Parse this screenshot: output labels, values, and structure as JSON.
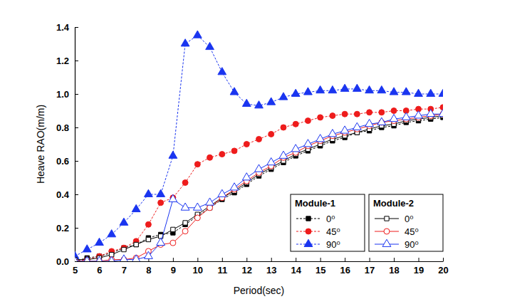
{
  "chart_data": {
    "type": "line",
    "x_label": "Period(sec)",
    "y_label": "Heave RAO(m/m)",
    "xlim": [
      5,
      20
    ],
    "xticks": [
      5,
      6,
      7,
      8,
      9,
      10,
      11,
      12,
      13,
      14,
      15,
      16,
      17,
      18,
      19,
      20
    ],
    "ylim": [
      0,
      1.4
    ],
    "yticks": [
      {
        "value": 0,
        "label": "0.0"
      },
      0.2,
      0.4,
      0.6,
      0.8,
      {
        "value": 1,
        "label": "1.0"
      },
      1.2,
      1.4
    ],
    "grid": false,
    "legend": "bottom-right",
    "x": [
      5,
      5.5,
      6,
      6.5,
      7,
      7.5,
      8,
      8.5,
      9,
      9.5,
      10,
      10.5,
      11,
      11.5,
      12,
      12.5,
      13,
      13.5,
      14,
      14.5,
      15,
      15.5,
      16,
      16.5,
      17,
      17.5,
      18,
      18.5,
      19,
      19.5,
      20
    ],
    "series": [
      {
        "name": "0⁰",
        "group": "Module-1",
        "color": "#000000",
        "marker": "filled-square",
        "line_style": "dashed",
        "values": [
          0.0,
          0.02,
          0.03,
          0.05,
          0.08,
          0.1,
          0.14,
          0.16,
          0.17,
          0.22,
          0.27,
          0.32,
          0.37,
          0.41,
          0.46,
          0.51,
          0.55,
          0.59,
          0.63,
          0.66,
          0.69,
          0.72,
          0.74,
          0.77,
          0.78,
          0.8,
          0.81,
          0.83,
          0.84,
          0.85,
          0.86
        ]
      },
      {
        "name": "45⁰",
        "group": "Module-1",
        "color": "#ee1c1c",
        "marker": "filled-circle",
        "line_style": "dashed",
        "values": [
          0.0,
          0.01,
          0.03,
          0.06,
          0.08,
          0.12,
          0.22,
          0.35,
          0.38,
          0.47,
          0.58,
          0.62,
          0.64,
          0.66,
          0.7,
          0.73,
          0.76,
          0.8,
          0.82,
          0.84,
          0.86,
          0.87,
          0.88,
          0.88,
          0.89,
          0.89,
          0.9,
          0.9,
          0.91,
          0.91,
          0.92
        ]
      },
      {
        "name": "90⁰",
        "group": "Module-1",
        "color": "#1a35f0",
        "marker": "filled-triangle",
        "line_style": "dashed",
        "values": [
          0.03,
          0.07,
          0.11,
          0.16,
          0.23,
          0.31,
          0.4,
          0.4,
          0.63,
          1.3,
          1.35,
          1.28,
          1.13,
          1.01,
          0.94,
          0.93,
          0.95,
          0.98,
          1.0,
          1.01,
          1.02,
          1.02,
          1.03,
          1.03,
          1.02,
          1.02,
          1.01,
          1.01,
          1.0,
          1.0,
          1.0
        ]
      },
      {
        "name": "0⁰",
        "group": "Module-2",
        "color": "#000000",
        "marker": "open-square",
        "line_style": "solid",
        "values": [
          0.01,
          0.01,
          0.02,
          0.04,
          0.07,
          0.1,
          0.13,
          0.15,
          0.19,
          0.23,
          0.28,
          0.33,
          0.38,
          0.42,
          0.47,
          0.52,
          0.56,
          0.6,
          0.64,
          0.67,
          0.7,
          0.73,
          0.75,
          0.77,
          0.79,
          0.81,
          0.82,
          0.84,
          0.85,
          0.86,
          0.87
        ]
      },
      {
        "name": "45⁰",
        "group": "Module-2",
        "color": "#ee1c1c",
        "marker": "open-circle",
        "line_style": "solid",
        "values": [
          0.0,
          0.0,
          0.0,
          0.01,
          0.01,
          0.02,
          0.06,
          0.1,
          0.11,
          0.18,
          0.26,
          0.32,
          0.38,
          0.43,
          0.48,
          0.53,
          0.57,
          0.62,
          0.65,
          0.69,
          0.72,
          0.75,
          0.77,
          0.79,
          0.81,
          0.83,
          0.84,
          0.85,
          0.86,
          0.87,
          0.88
        ]
      },
      {
        "name": "90⁰",
        "group": "Module-2",
        "color": "#1a35f0",
        "marker": "open-triangle",
        "line_style": "solid",
        "values": [
          0.0,
          0.0,
          0.0,
          0.0,
          0.01,
          0.01,
          0.03,
          0.11,
          0.37,
          0.32,
          0.32,
          0.35,
          0.4,
          0.44,
          0.5,
          0.55,
          0.59,
          0.63,
          0.67,
          0.7,
          0.73,
          0.76,
          0.78,
          0.8,
          0.82,
          0.83,
          0.85,
          0.86,
          0.87,
          0.88,
          0.88
        ]
      }
    ]
  }
}
